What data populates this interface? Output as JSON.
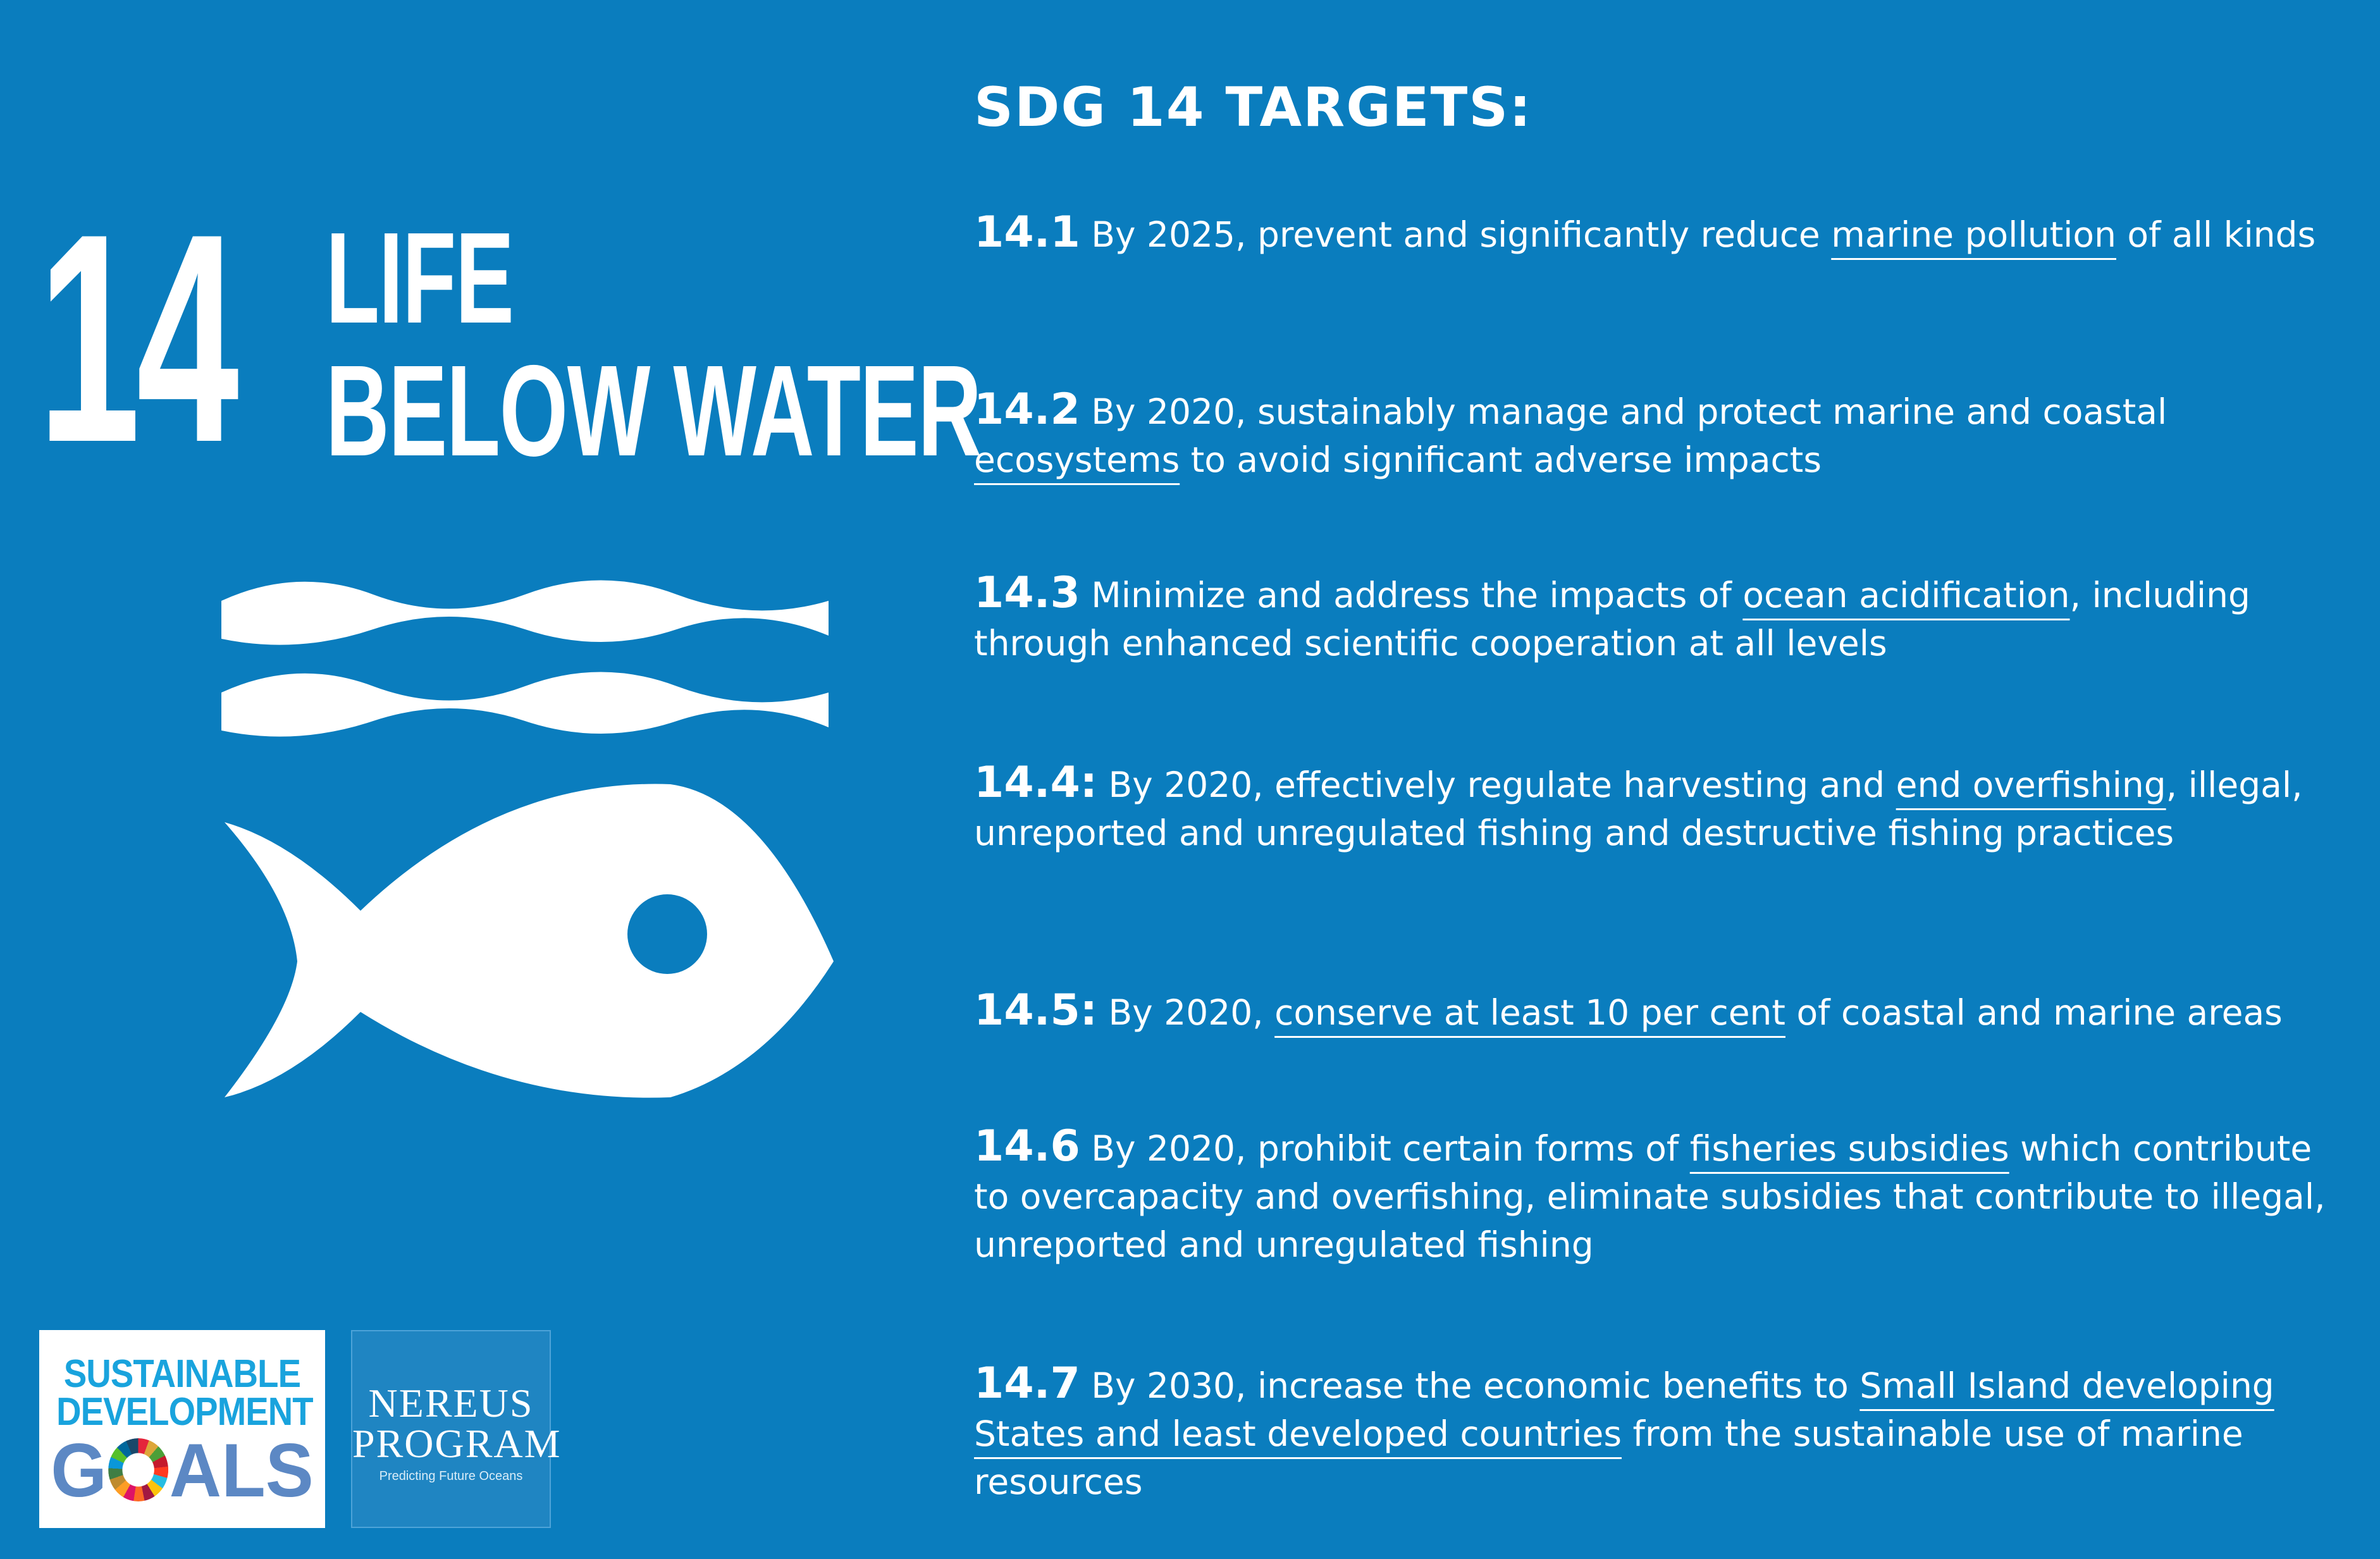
{
  "goal": {
    "number": "14",
    "title_line1": "LIFE",
    "title_line2": "BELOW WATER"
  },
  "targets_heading": "SDG  14 TARGETS:",
  "targets": [
    {
      "num": "14.1",
      "pre": " By 2025, prevent and significantly reduce ",
      "link": "marine pollution",
      "post": " of all kinds"
    },
    {
      "num": "14.2",
      "pre": " By 2020, sustainably manage and protect marine and coastal ",
      "link": "ecosystems",
      "post": " to avoid significant adverse impacts"
    },
    {
      "num": "14.3",
      "pre": " Minimize and address the impacts of ",
      "link": "ocean acidification",
      "post": ", including through enhanced scientific cooperation at all levels"
    },
    {
      "num": "14.4:",
      "pre": " By 2020, effectively regulate harvesting and ",
      "link": "end overfishing",
      "post": ", illegal, unreported and unregulated fishing and destructive fishing practices"
    },
    {
      "num": "14.5:",
      "pre": " By 2020, ",
      "link": "conserve at least 10 per cent",
      "post": " of coastal and marine areas"
    },
    {
      "num": "14.6",
      "pre": " By 2020, prohibit certain forms of ",
      "link": "fisheries subsidies",
      "post": " which contribute to overcapacity and overfishing, eliminate subsidies that contribute to illegal, unreported and unregulated fishing"
    },
    {
      "num": "14.7",
      "pre": " By 2030, increase the economic benefits to ",
      "link": "Small Island developing States and least developed countries",
      "post": " from the sustainable use of marine resources"
    }
  ],
  "logos": {
    "sdg_line1": "SUSTAINABLE",
    "sdg_line2": "DEVELOPMENT",
    "sdg_line3_pre": "G",
    "sdg_line3_post": "ALS",
    "nereus_line1": "NEREUS",
    "nereus_line2": "PROGRAM",
    "nereus_tagline": "Predicting Future Oceans"
  },
  "colors": {
    "background": "#0A7DBE",
    "sdg_blue": "#19A3DD",
    "sdg_gray": "#5C88C4",
    "text": "#FFFFFF"
  },
  "icons": [
    "waves-icon",
    "fish-icon",
    "sdg-wheel-icon"
  ]
}
